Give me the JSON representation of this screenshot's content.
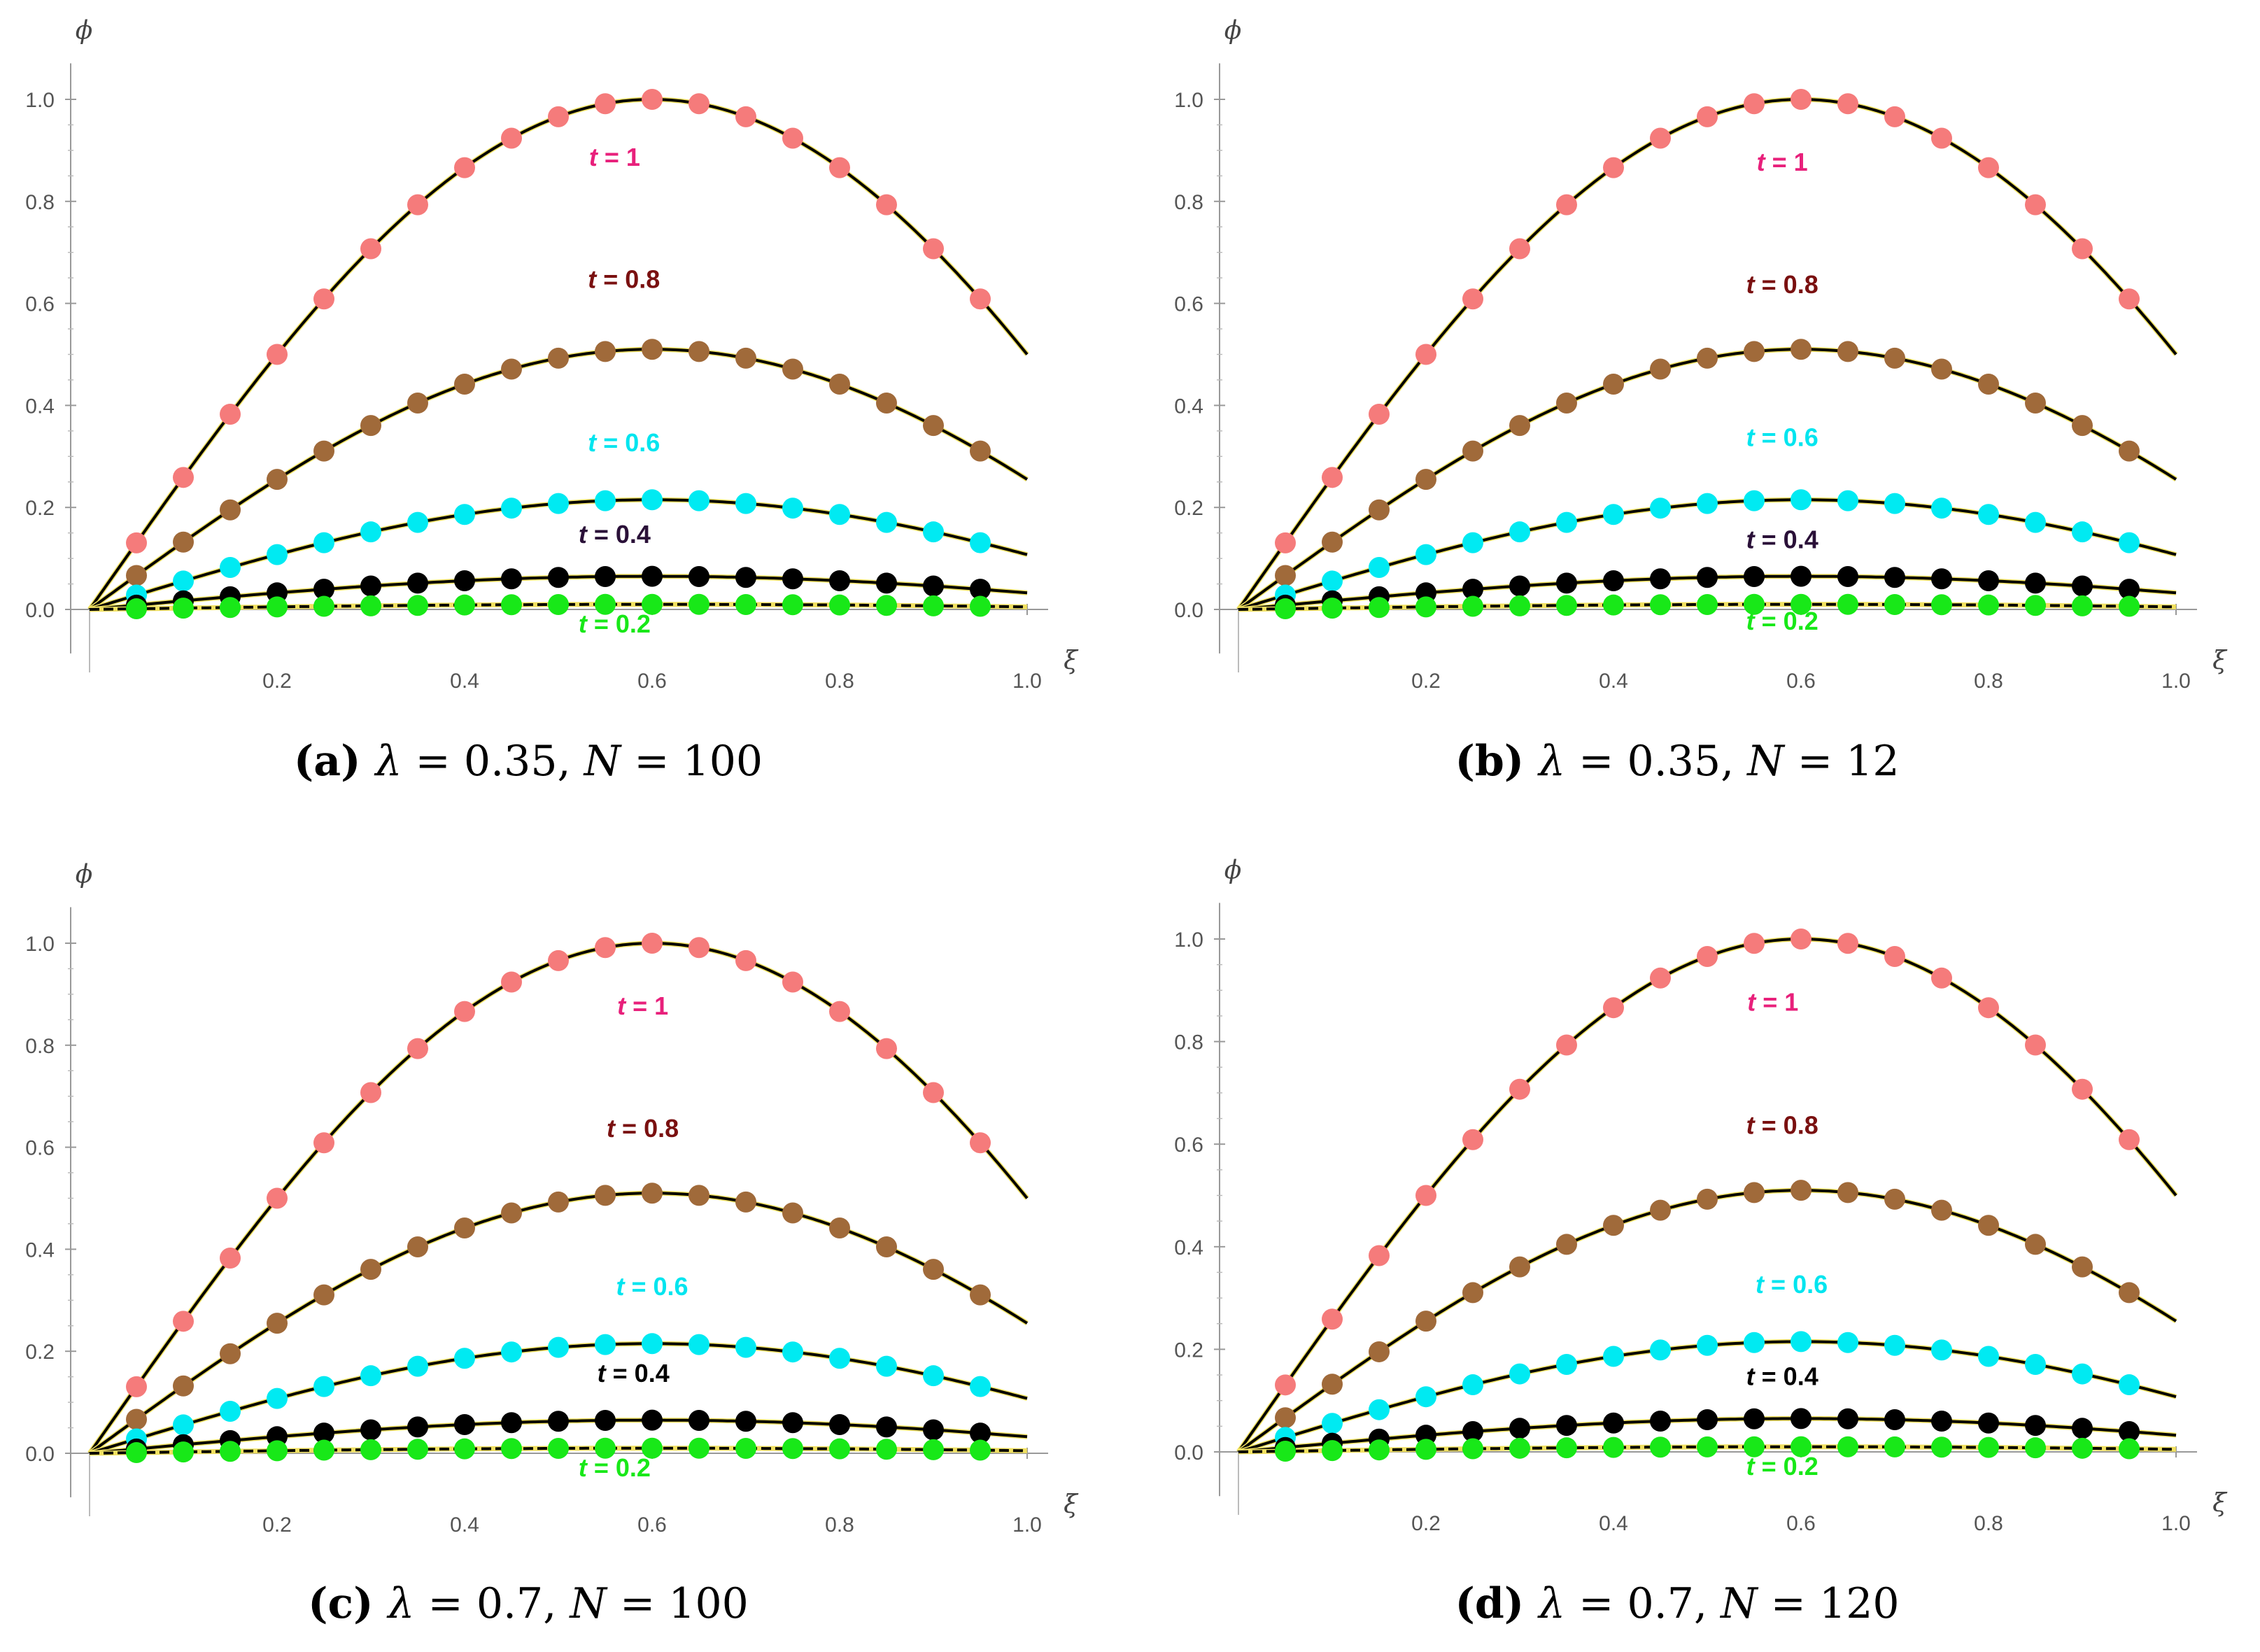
{
  "chart_data": [
    {
      "type": "line",
      "panel": "a",
      "caption": {
        "tag": "(a)",
        "lambda_sym": "λ",
        "lambda_value": "= 0.35,",
        "n_sym": "N",
        "n_value": "= 100"
      },
      "ylabel": "ϕ",
      "xlabel": "ξ",
      "xlim": [
        0,
        1.0
      ],
      "ylim": [
        -0.1,
        1.05
      ],
      "xticks": [
        "0.2",
        "0.4",
        "0.6",
        "0.8",
        "1.0"
      ],
      "yticks": [
        "0.0",
        "0.2",
        "0.4",
        "0.6",
        "0.8",
        "1.0"
      ],
      "series": [
        {
          "name": "t = 1",
          "label_t": "t",
          "label_rest": " = 1",
          "t": 1.0,
          "amplitude": 1.0,
          "marker_color": "#f57b7b",
          "label_color": "#e8207b",
          "label_x": 0.56,
          "label_y": 0.87
        },
        {
          "name": "t = 0.8",
          "label_t": "t",
          "label_rest": " = 0.8",
          "t": 0.8,
          "amplitude": 0.51,
          "marker_color": "#a06a3a",
          "label_color": "#7a1010",
          "label_x": 0.57,
          "label_y": 0.63
        },
        {
          "name": "t = 0.6",
          "label_t": "t",
          "label_rest": " = 0.6",
          "t": 0.6,
          "amplitude": 0.215,
          "marker_color": "#00eaf2",
          "label_color": "#00e5ef",
          "label_x": 0.57,
          "label_y": 0.31
        },
        {
          "name": "t = 0.4",
          "label_t": "t",
          "label_rest": " = 0.4",
          "t": 0.4,
          "amplitude": 0.065,
          "marker_color": "#000000",
          "label_color": "#2a1038",
          "label_x": 0.56,
          "label_y": 0.13
        },
        {
          "name": "t = 0.2",
          "label_t": "t",
          "label_rest": " = 0.2",
          "t": 0.2,
          "amplitude": 0.01,
          "marker_color": "#18e818",
          "label_color": "#18e818",
          "label_x": 0.56,
          "label_y": -0.045
        }
      ]
    },
    {
      "type": "line",
      "panel": "b",
      "caption": {
        "tag": "(b)",
        "lambda_sym": "λ",
        "lambda_value": "= 0.35,",
        "n_sym": "N",
        "n_value": "= 12"
      },
      "ylabel": "ϕ",
      "xlabel": "ξ",
      "xlim": [
        0,
        1.0
      ],
      "ylim": [
        -0.1,
        1.05
      ],
      "xticks": [
        "0.2",
        "0.4",
        "0.6",
        "0.8",
        "1.0"
      ],
      "yticks": [
        "0.0",
        "0.2",
        "0.4",
        "0.6",
        "0.8",
        "1.0"
      ],
      "series": [
        {
          "name": "t = 1",
          "label_t": "t",
          "label_rest": " = 1",
          "t": 1.0,
          "amplitude": 1.0,
          "marker_color": "#f57b7b",
          "label_color": "#e8207b",
          "label_x": 0.58,
          "label_y": 0.86
        },
        {
          "name": "t = 0.8",
          "label_t": "t",
          "label_rest": " = 0.8",
          "t": 0.8,
          "amplitude": 0.51,
          "marker_color": "#a06a3a",
          "label_color": "#7a1010",
          "label_x": 0.58,
          "label_y": 0.62
        },
        {
          "name": "t = 0.6",
          "label_t": "t",
          "label_rest": " = 0.6",
          "t": 0.6,
          "amplitude": 0.215,
          "marker_color": "#00eaf2",
          "label_color": "#00e5ef",
          "label_x": 0.58,
          "label_y": 0.32
        },
        {
          "name": "t = 0.4",
          "label_t": "t",
          "label_rest": " = 0.4",
          "t": 0.4,
          "amplitude": 0.065,
          "marker_color": "#000000",
          "label_color": "#2a1038",
          "label_x": 0.58,
          "label_y": 0.12
        },
        {
          "name": "t = 0.2",
          "label_t": "t",
          "label_rest": " = 0.2",
          "t": 0.2,
          "amplitude": 0.01,
          "marker_color": "#18e818",
          "label_color": "#18e818",
          "label_x": 0.58,
          "label_y": -0.04
        }
      ]
    },
    {
      "type": "line",
      "panel": "c",
      "caption": {
        "tag": "(c)",
        "lambda_sym": "λ",
        "lambda_value": "= 0.7,",
        "n_sym": "N",
        "n_value": "= 100"
      },
      "ylabel": "ϕ",
      "xlabel": "ξ",
      "xlim": [
        0,
        1.0
      ],
      "ylim": [
        -0.1,
        1.05
      ],
      "xticks": [
        "0.2",
        "0.4",
        "0.6",
        "0.8",
        "1.0"
      ],
      "yticks": [
        "0.0",
        "0.2",
        "0.4",
        "0.6",
        "0.8",
        "1.0"
      ],
      "series": [
        {
          "name": "t = 1",
          "label_t": "t",
          "label_rest": " = 1",
          "t": 1.0,
          "amplitude": 1.0,
          "marker_color": "#f57b7b",
          "label_color": "#e8207b",
          "label_x": 0.59,
          "label_y": 0.86
        },
        {
          "name": "t = 0.8",
          "label_t": "t",
          "label_rest": " = 0.8",
          "t": 0.8,
          "amplitude": 0.51,
          "marker_color": "#a06a3a",
          "label_color": "#7a1010",
          "label_x": 0.59,
          "label_y": 0.62
        },
        {
          "name": "t = 0.6",
          "label_t": "t",
          "label_rest": " = 0.6",
          "t": 0.6,
          "amplitude": 0.215,
          "marker_color": "#00eaf2",
          "label_color": "#00e5ef",
          "label_x": 0.6,
          "label_y": 0.31
        },
        {
          "name": "t = 0.4",
          "label_t": "t",
          "label_rest": " = 0.4",
          "t": 0.4,
          "amplitude": 0.065,
          "marker_color": "#000000",
          "label_color": "#000000",
          "label_x": 0.58,
          "label_y": 0.14
        },
        {
          "name": "t = 0.2",
          "label_t": "t",
          "label_rest": " = 0.2",
          "t": 0.2,
          "amplitude": 0.01,
          "marker_color": "#18e818",
          "label_color": "#18e818",
          "label_x": 0.56,
          "label_y": -0.045
        }
      ]
    },
    {
      "type": "line",
      "panel": "d",
      "caption": {
        "tag": "(d)",
        "lambda_sym": "λ",
        "lambda_value": "= 0.7,",
        "n_sym": "N",
        "n_value": "= 120"
      },
      "ylabel": "ϕ",
      "xlabel": "ξ",
      "xlim": [
        0,
        1.0
      ],
      "ylim": [
        -0.1,
        1.05
      ],
      "xticks": [
        "0.2",
        "0.4",
        "0.6",
        "0.8",
        "1.0"
      ],
      "yticks": [
        "0.0",
        "0.2",
        "0.4",
        "0.6",
        "0.8",
        "1.0"
      ],
      "series": [
        {
          "name": "t = 1",
          "label_t": "t",
          "label_rest": " = 1",
          "t": 1.0,
          "amplitude": 1.0,
          "marker_color": "#f57b7b",
          "label_color": "#e8207b",
          "label_x": 0.57,
          "label_y": 0.86
        },
        {
          "name": "t = 0.8",
          "label_t": "t",
          "label_rest": " = 0.8",
          "t": 0.8,
          "amplitude": 0.51,
          "marker_color": "#a06a3a",
          "label_color": "#7a1010",
          "label_x": 0.58,
          "label_y": 0.62
        },
        {
          "name": "t = 0.6",
          "label_t": "t",
          "label_rest": " = 0.6",
          "t": 0.6,
          "amplitude": 0.215,
          "marker_color": "#00eaf2",
          "label_color": "#00e5ef",
          "label_x": 0.59,
          "label_y": 0.31
        },
        {
          "name": "t = 0.4",
          "label_t": "t",
          "label_rest": " = 0.4",
          "t": 0.4,
          "amplitude": 0.065,
          "marker_color": "#000000",
          "label_color": "#000000",
          "label_x": 0.58,
          "label_y": 0.13
        },
        {
          "name": "t = 0.2",
          "label_t": "t",
          "label_rest": " = 0.2",
          "t": 0.2,
          "amplitude": 0.01,
          "marker_color": "#18e818",
          "label_color": "#18e818",
          "label_x": 0.58,
          "label_y": -0.045
        }
      ]
    }
  ],
  "curve_shape": {
    "description": "phi = amplitude * sin(pi * xi / 1.2) / sin(pi/2); peak at xi = 0.6",
    "period_factor": 1.2,
    "marker_xi": [
      0.05,
      0.1,
      0.15,
      0.2,
      0.25,
      0.3,
      0.35,
      0.4,
      0.45,
      0.5,
      0.55,
      0.6,
      0.65,
      0.7,
      0.75,
      0.8,
      0.85,
      0.9,
      0.95
    ],
    "line_color": "#000000",
    "line_highlight_color": "#f0e060"
  }
}
